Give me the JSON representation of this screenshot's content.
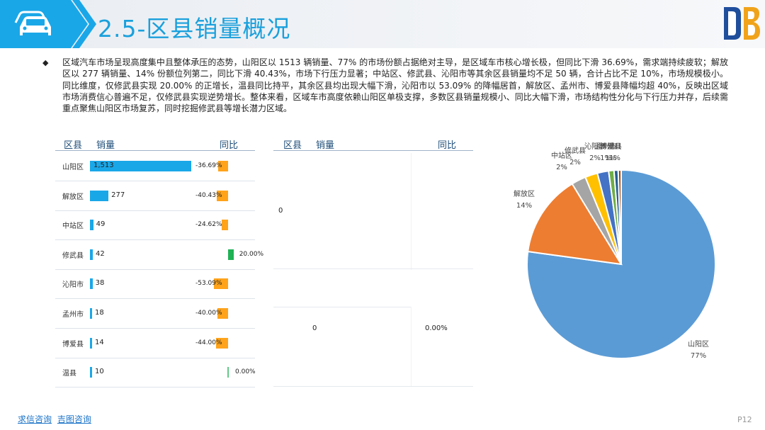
{
  "header": {
    "title": "2.5-区县销量概况",
    "logo_text": "DB"
  },
  "summary": "区域汽车市场呈现高度集中且整体承压的态势，山阳区以 1513 辆销量、77% 的市场份额占据绝对主导，是区域车市核心增长极，但同比下滑 36.69%，需求端持续疲软；解放区以 277 辆销量、14% 份额位列第二，同比下滑 40.43%，市场下行压力显著；中站区、修武县、沁阳市等其余区县销量均不足 50 辆，合计占比不足 10%，市场规模极小。同比维度，仅修武县实现 20.00% 的正增长，温县同比持平，其余区县均出现大幅下滑，沁阳市以 53.09% 的降幅居首，解放区、孟州市、博爱县降幅均超 40%，反映出区域市场消费信心普遍不足，仅修武县实现逆势增长。整体来看，区域车市高度依赖山阳区单极支撑，多数区县销量规模小、同比大幅下滑，市场结构性分化与下行压力并存，后续需重点聚焦山阳区市场复苏，同时挖掘修武县等增长潜力区域。",
  "table1": {
    "headers": {
      "district": "区县",
      "sales": "销量",
      "yoy": "同比"
    }
  },
  "table2": {
    "headers": {
      "district": "区县",
      "sales": "销量",
      "yoy": "同比"
    },
    "values": {
      "row1_sales": "0",
      "row2_sales": "0",
      "row2_yoy": "0.00%"
    }
  },
  "chart_data": [
    {
      "type": "table",
      "rows": [
        {
          "district": "山阳区",
          "sales": 1513,
          "sales_label": "1,513",
          "yoy": -36.69,
          "yoy_label": "-36.69%"
        },
        {
          "district": "解放区",
          "sales": 277,
          "sales_label": "277",
          "yoy": -40.43,
          "yoy_label": "-40.43%"
        },
        {
          "district": "中站区",
          "sales": 49,
          "sales_label": "49",
          "yoy": -24.62,
          "yoy_label": "-24.62%"
        },
        {
          "district": "修武县",
          "sales": 42,
          "sales_label": "42",
          "yoy": 20.0,
          "yoy_label": "20.00%"
        },
        {
          "district": "沁阳市",
          "sales": 38,
          "sales_label": "38",
          "yoy": -53.09,
          "yoy_label": "-53.09%"
        },
        {
          "district": "孟州市",
          "sales": 18,
          "sales_label": "18",
          "yoy": -40.0,
          "yoy_label": "-40.00%"
        },
        {
          "district": "博爱县",
          "sales": 14,
          "sales_label": "14",
          "yoy": -44.0,
          "yoy_label": "-44.00%"
        },
        {
          "district": "温县",
          "sales": 10,
          "sales_label": "10",
          "yoy": 0.0,
          "yoy_label": "0.00%"
        }
      ],
      "colors": {
        "sales_bar": "#1aa7e8",
        "yoy_negative": "#ffa31a",
        "yoy_positive": "#1fb254"
      }
    },
    {
      "type": "pie",
      "slices": [
        {
          "name": "山阳区",
          "value": 1513,
          "pct_label": "77%",
          "color": "#5b9bd5"
        },
        {
          "name": "解放区",
          "value": 277,
          "pct_label": "14%",
          "color": "#ed7d31"
        },
        {
          "name": "中站区",
          "value": 49,
          "pct_label": "2%",
          "color": "#a5a5a5"
        },
        {
          "name": "修武县",
          "value": 42,
          "pct_label": "2%",
          "color": "#ffc000"
        },
        {
          "name": "沁阳市",
          "value": 38,
          "pct_label": "2%",
          "color": "#4472c4"
        },
        {
          "name": "孟州市",
          "value": 18,
          "pct_label": "1%",
          "color": "#70ad47"
        },
        {
          "name": "博爱县",
          "value": 14,
          "pct_label": "1%",
          "color": "#255e91"
        },
        {
          "name": "温县",
          "value": 10,
          "pct_label": "1%",
          "color": "#9e480e"
        }
      ]
    }
  ],
  "footer": {
    "link1": "求信咨询",
    "link2": "吉图咨询",
    "page": "P12"
  }
}
